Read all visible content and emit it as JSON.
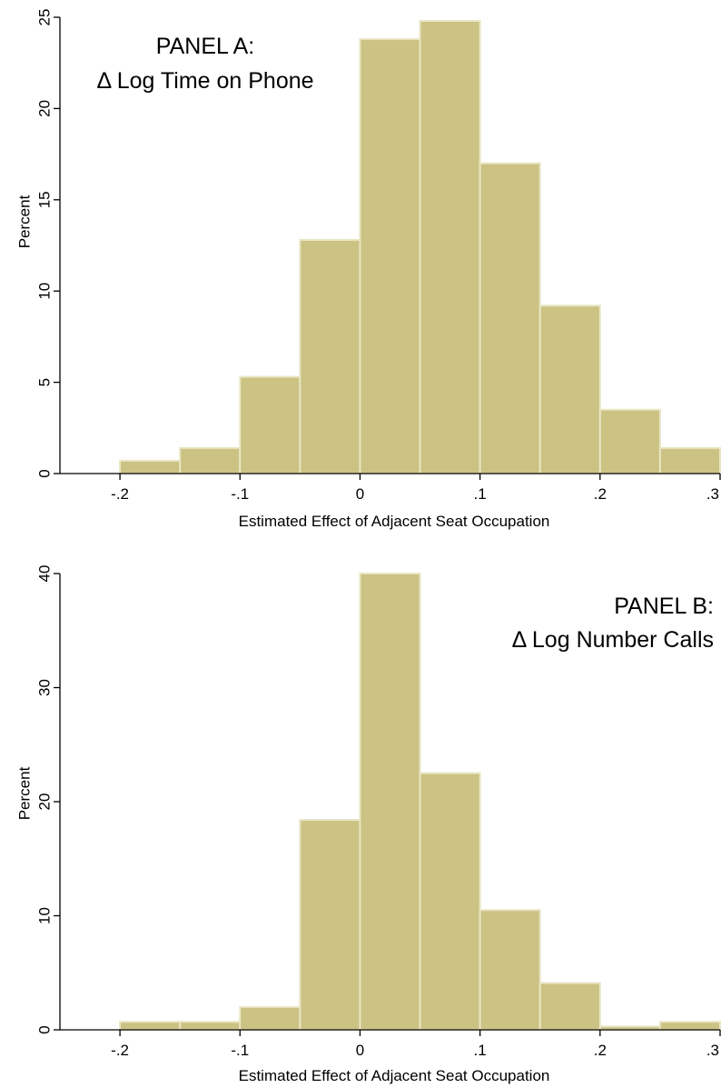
{
  "colors": {
    "bar_fill": "#cbc283",
    "bar_stroke": "#e9e5c4",
    "axis": "#000000"
  },
  "chart_data": [
    {
      "type": "bar",
      "title_lines": [
        "PANEL A:",
        "Δ Log Time on Phone"
      ],
      "xlabel": "Estimated Effect of Adjacent Seat Occupation",
      "ylabel": "Percent",
      "xlim": [
        -0.25,
        0.3
      ],
      "ylim": [
        0,
        25
      ],
      "xticks": [
        -0.2,
        -0.1,
        0,
        0.1,
        0.2,
        0.3
      ],
      "xtick_labels": [
        "-.2",
        "-.1",
        "0",
        ".1",
        ".2",
        ".3"
      ],
      "yticks": [
        0,
        5,
        10,
        15,
        20,
        25
      ],
      "ytick_labels": [
        "0",
        "5",
        "10",
        "15",
        "20",
        "25"
      ],
      "bin_edges": [
        -0.2,
        -0.15,
        -0.1,
        -0.05,
        0,
        0.05,
        0.1,
        0.15,
        0.2,
        0.25,
        0.3
      ],
      "values": [
        0.7,
        1.4,
        5.3,
        12.8,
        23.8,
        24.8,
        17.0,
        9.2,
        3.5,
        1.4
      ],
      "grid": false,
      "legend": "none"
    },
    {
      "type": "bar",
      "title_lines": [
        "PANEL B:",
        "Δ Log Number Calls"
      ],
      "xlabel": "Estimated Effect of Adjacent Seat Occupation",
      "ylabel": "Percent",
      "xlim": [
        -0.25,
        0.3
      ],
      "ylim": [
        0,
        40
      ],
      "xticks": [
        -0.2,
        -0.1,
        0,
        0.1,
        0.2,
        0.3
      ],
      "xtick_labels": [
        "-.2",
        "-.1",
        "0",
        ".1",
        ".2",
        ".3"
      ],
      "yticks": [
        0,
        10,
        20,
        30,
        40
      ],
      "ytick_labels": [
        "0",
        "10",
        "20",
        "30",
        "40"
      ],
      "bin_edges": [
        -0.2,
        -0.15,
        -0.1,
        -0.05,
        0,
        0.05,
        0.1,
        0.15,
        0.2,
        0.25,
        0.3
      ],
      "values": [
        0.7,
        0.7,
        2.0,
        18.4,
        40.0,
        22.5,
        10.5,
        4.1,
        0.3,
        0.7
      ],
      "grid": false,
      "legend": "none"
    }
  ]
}
